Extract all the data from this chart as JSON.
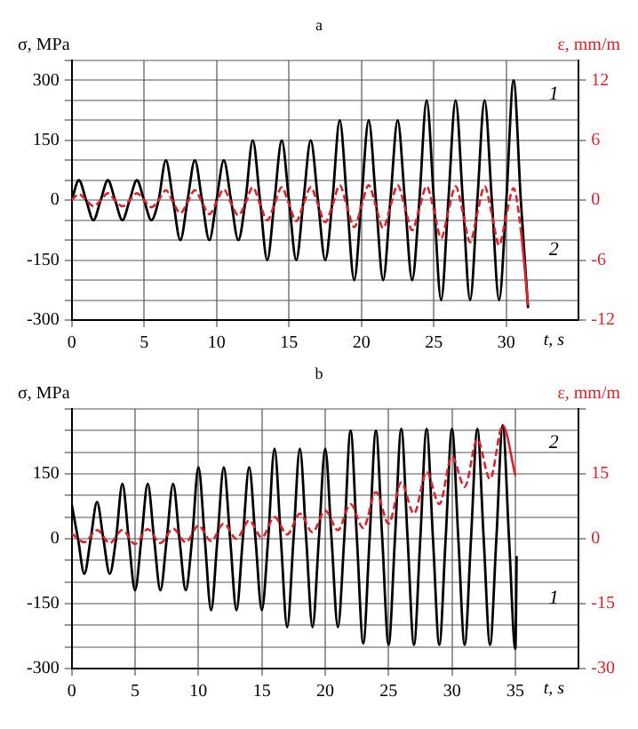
{
  "chart_data": [
    {
      "type": "line",
      "title": "a",
      "ylabel": "σ, MPa",
      "y2label": "ε, mm/m",
      "xlabel": "t, s",
      "xlim": [
        0,
        35
      ],
      "xticks": [
        0,
        5,
        10,
        15,
        20,
        25,
        30
      ],
      "ylim": [
        -300,
        350
      ],
      "yticks": [
        -300,
        {
          "value": -250,
          "label": null
        },
        {
          "value": -200,
          "label": null
        },
        -150,
        {
          "value": -100,
          "label": null
        },
        {
          "value": -50,
          "label": null
        },
        0,
        {
          "value": 50,
          "label": null
        },
        {
          "value": 100,
          "label": null
        },
        150,
        {
          "value": 200,
          "label": null
        },
        {
          "value": 250,
          "label": null
        },
        300,
        {
          "value": 350,
          "label": null
        }
      ],
      "y2lim": [
        -12,
        14
      ],
      "y2ticks": [
        -12,
        -6,
        0,
        6,
        12
      ],
      "grid": true,
      "marker": "none",
      "series": [
        {
          "color": "#000000",
          "line_style": "solid",
          "x": [
            0,
            0.5,
            1,
            1.5,
            2,
            2.5,
            3,
            3.5,
            4,
            4.5,
            5,
            5.5,
            6,
            6.5,
            7,
            7.5,
            8,
            8.5,
            9,
            9.5,
            10,
            10.5,
            11,
            11.5,
            12,
            12.5,
            13,
            13.5,
            14,
            14.5,
            15,
            15.5,
            16,
            16.5,
            17,
            17.5,
            18,
            18.5,
            19,
            19.5,
            20,
            20.5,
            21,
            21.5,
            22,
            22.5,
            23,
            23.5,
            24,
            24.5,
            25,
            25.5,
            26,
            26.5,
            27,
            27.5,
            28,
            28.5,
            29,
            29.5,
            30,
            30.5,
            31,
            31.5
          ],
          "values": [
            0,
            50,
            0,
            -50,
            0,
            50,
            0,
            -50,
            0,
            50,
            0,
            -50,
            0,
            100,
            0,
            -100,
            0,
            100,
            0,
            -100,
            0,
            100,
            0,
            -100,
            0,
            150,
            0,
            -150,
            0,
            150,
            0,
            -150,
            0,
            150,
            0,
            -150,
            0,
            200,
            0,
            -200,
            0,
            200,
            0,
            -200,
            0,
            200,
            0,
            -200,
            0,
            250,
            0,
            -250,
            0,
            250,
            0,
            -250,
            0,
            250,
            0,
            -250,
            0,
            300,
            0,
            -270
          ]
        },
        {
          "color": "#e0202a",
          "line_style": "dashed",
          "axis": "y2",
          "x": [
            0,
            0.5,
            1,
            1.5,
            2,
            2.5,
            3,
            3.5,
            4,
            4.5,
            5,
            5.5,
            6,
            6.5,
            7,
            7.5,
            8,
            8.5,
            9,
            9.5,
            10,
            10.5,
            11,
            11.5,
            12,
            12.5,
            13,
            13.5,
            14,
            14.5,
            15,
            15.5,
            16,
            16.5,
            17,
            17.5,
            18,
            18.5,
            19,
            19.5,
            20,
            20.5,
            21,
            21.5,
            22,
            22.5,
            23,
            23.5,
            24,
            24.5,
            25,
            25.5,
            26,
            26.5,
            27,
            27.5,
            28,
            28.5,
            29,
            29.5,
            30,
            30.5,
            31,
            31.5
          ],
          "values": [
            0,
            0.6,
            0,
            -0.6,
            0,
            0.7,
            0,
            -0.6,
            0,
            0.7,
            0,
            -0.7,
            0,
            1,
            -0.2,
            -1.3,
            -0.2,
            1,
            -0.2,
            -1.4,
            -0.2,
            1.1,
            -0.3,
            -1.5,
            -0.3,
            1.3,
            -0.4,
            -2,
            -0.4,
            1.3,
            -0.4,
            -2.1,
            -0.4,
            1.3,
            -0.4,
            -2.2,
            -0.5,
            1.5,
            -0.6,
            -2.7,
            -0.6,
            1.5,
            -0.6,
            -2.8,
            -0.6,
            1.5,
            -0.7,
            -3,
            -0.8,
            1.4,
            -1,
            -3.8,
            -1.1,
            1.4,
            -1.2,
            -4.2,
            -1.3,
            1.4,
            -1.4,
            -4.5,
            -1.5,
            1.2,
            -3,
            -10.5
          ]
        }
      ],
      "annotations": [
        "1",
        "2"
      ]
    },
    {
      "type": "line",
      "title": "b",
      "ylabel": "σ, MPa",
      "y2label": "ε, mm/m",
      "xlabel": "t, s",
      "xlim": [
        0,
        40
      ],
      "xticks": [
        0,
        5,
        10,
        15,
        20,
        25,
        30,
        35
      ],
      "ylim": [
        -300,
        300
      ],
      "yticks": [
        -300,
        {
          "value": -250,
          "label": null
        },
        {
          "value": -200,
          "label": null
        },
        -150,
        {
          "value": -100,
          "label": null
        },
        {
          "value": -50,
          "label": null
        },
        0,
        {
          "value": 50,
          "label": null
        },
        {
          "value": 100,
          "label": null
        },
        150,
        {
          "value": 200,
          "label": null
        },
        {
          "value": 250,
          "label": null
        },
        {
          "value": 300,
          "label": null
        }
      ],
      "y2lim": [
        -30,
        30
      ],
      "y2ticks": [
        -30,
        -15,
        0,
        15,
        {
          "value": 30,
          "label": null
        }
      ],
      "grid": true,
      "marker": "none",
      "series": [
        {
          "color": "#000000",
          "line_style": "solid",
          "x": [
            0,
            0.5,
            1,
            1.5,
            2,
            2.5,
            3,
            3.5,
            4,
            4.5,
            5,
            5.5,
            6,
            6.5,
            7,
            7.5,
            8,
            8.5,
            9,
            9.5,
            10,
            10.5,
            11,
            11.5,
            12,
            12.5,
            13,
            13.5,
            14,
            14.5,
            15,
            15.5,
            16,
            16.5,
            17,
            17.5,
            18,
            18.5,
            19,
            19.5,
            20,
            20.5,
            21,
            21.5,
            22,
            22.5,
            23,
            23.5,
            24,
            24.5,
            25,
            25.5,
            26,
            26.5,
            27,
            27.5,
            28,
            28.5,
            29,
            29.5,
            30,
            30.5,
            31,
            31.5,
            32,
            32.5,
            33,
            33.5,
            34,
            34.5,
            35,
            35.1
          ],
          "values": [
            80,
            0,
            -81,
            0,
            85,
            0,
            -81,
            0,
            127,
            0,
            -119,
            0,
            127,
            0,
            -119,
            0,
            127,
            0,
            -119,
            0,
            165,
            0,
            -165,
            0,
            165,
            0,
            -165,
            0,
            165,
            0,
            -165,
            0,
            208,
            0,
            -204,
            0,
            208,
            0,
            -204,
            0,
            208,
            0,
            -204,
            0,
            250,
            0,
            -242,
            0,
            250,
            0,
            -245,
            0,
            254,
            0,
            -245,
            0,
            254,
            0,
            -245,
            0,
            254,
            0,
            -245,
            0,
            254,
            0,
            -245,
            0,
            262,
            0,
            -255,
            -40
          ]
        },
        {
          "color": "#e0202a",
          "line_style": "dashed",
          "axis": "y2",
          "x": [
            0,
            1,
            2,
            3,
            4,
            5,
            6,
            7,
            8,
            9,
            10,
            11,
            12,
            13,
            14,
            15,
            16,
            17,
            18,
            19,
            20,
            21,
            22,
            23,
            24,
            25,
            26,
            27,
            28,
            29,
            30,
            31,
            32,
            33,
            34,
            35
          ],
          "values": [
            1.2,
            -0.8,
            2,
            -1,
            2,
            -1.2,
            2.2,
            -1,
            2.3,
            -0.8,
            3,
            -0.5,
            3.5,
            0,
            4.2,
            0.3,
            5,
            1,
            5.8,
            1.5,
            6.5,
            2,
            8,
            2.5,
            10.8,
            3.5,
            13,
            5.8,
            15.4,
            8,
            19,
            12,
            23,
            13.8,
            26.2,
            14.6
          ]
        }
      ],
      "annotations": [
        "2",
        "1"
      ]
    }
  ]
}
